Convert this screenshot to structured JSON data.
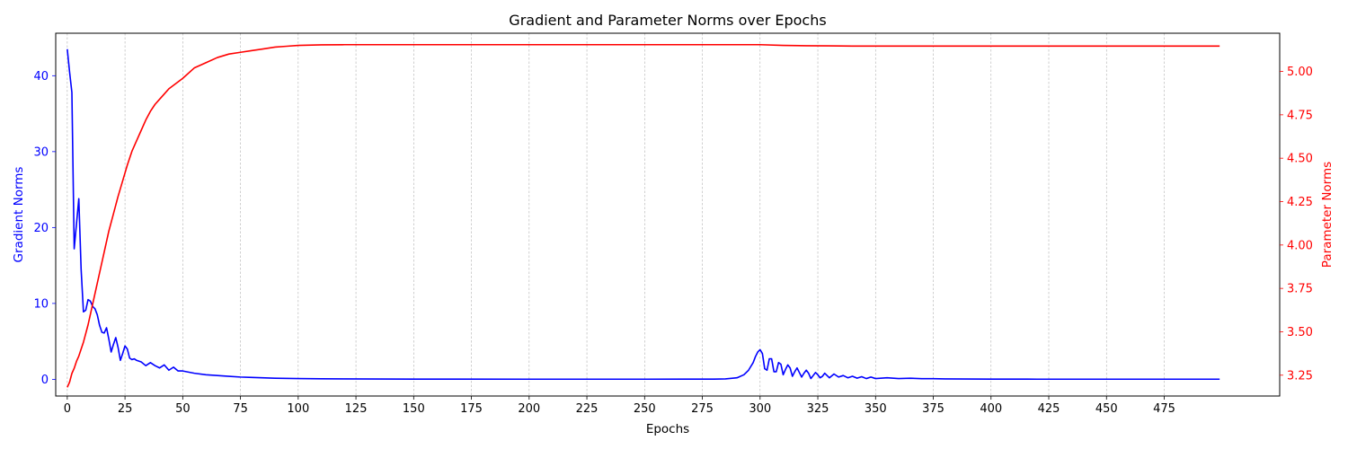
{
  "chart_data": {
    "type": "line",
    "title": "Gradient and Parameter Norms over Epochs",
    "xlabel": "Epochs",
    "ylabel_left": "Gradient Norms",
    "ylabel_right": "Parameter Norms",
    "xlim": [
      -5,
      525
    ],
    "ylim_left": [
      -2.2,
      45.6
    ],
    "ylim_right": [
      3.13,
      5.22
    ],
    "xticks": [
      0,
      25,
      50,
      75,
      100,
      125,
      150,
      175,
      200,
      225,
      250,
      275,
      300,
      325,
      350,
      375,
      400,
      425,
      450,
      475
    ],
    "yticks_left": [
      0,
      10,
      20,
      30,
      40
    ],
    "yticks_right": [
      3.25,
      3.5,
      3.75,
      4.0,
      4.25,
      4.5,
      4.75,
      5.0
    ],
    "grid": "vertical dashed",
    "series": [
      {
        "name": "Gradient Norms",
        "axis": "left",
        "color": "#0000ff",
        "x": [
          0,
          1,
          2,
          3,
          4,
          5,
          6,
          7,
          8,
          9,
          10,
          11,
          12,
          13,
          14,
          15,
          16,
          17,
          18,
          19,
          20,
          21,
          22,
          23,
          24,
          25,
          26,
          27,
          28,
          29,
          30,
          32,
          34,
          36,
          38,
          40,
          42,
          44,
          46,
          48,
          50,
          55,
          60,
          65,
          70,
          75,
          80,
          90,
          100,
          110,
          120,
          150,
          200,
          250,
          280,
          285,
          290,
          293,
          295,
          297,
          298,
          299,
          300,
          301,
          302,
          303,
          304,
          305,
          306,
          307,
          308,
          309,
          310,
          311,
          312,
          313,
          314,
          315,
          316,
          317,
          318,
          319,
          320,
          321,
          322,
          323,
          324,
          325,
          326,
          327,
          328,
          329,
          330,
          332,
          334,
          336,
          338,
          340,
          342,
          344,
          346,
          348,
          350,
          355,
          360,
          365,
          370,
          375,
          380,
          390,
          400,
          420,
          450,
          480,
          499
        ],
        "y": [
          43.5,
          40.5,
          37.8,
          17.2,
          20.5,
          23.8,
          14.5,
          8.9,
          9.1,
          10.5,
          10.3,
          9.6,
          9.3,
          8.5,
          7.1,
          6.2,
          6.1,
          6.8,
          5.3,
          3.6,
          4.6,
          5.5,
          4.2,
          2.5,
          3.4,
          4.4,
          4.0,
          2.8,
          2.6,
          2.7,
          2.5,
          2.3,
          1.8,
          2.2,
          1.8,
          1.5,
          1.9,
          1.2,
          1.6,
          1.1,
          1.1,
          0.8,
          0.6,
          0.5,
          0.4,
          0.3,
          0.25,
          0.15,
          0.1,
          0.07,
          0.05,
          0.03,
          0.02,
          0.02,
          0.03,
          0.05,
          0.2,
          0.6,
          1.2,
          2.2,
          3.0,
          3.6,
          3.9,
          3.4,
          1.4,
          1.2,
          2.7,
          2.7,
          1.0,
          1.0,
          2.2,
          2.0,
          0.6,
          1.3,
          1.9,
          1.5,
          0.4,
          1.0,
          1.5,
          0.9,
          0.3,
          0.8,
          1.2,
          0.8,
          0.1,
          0.5,
          0.9,
          0.6,
          0.2,
          0.4,
          0.8,
          0.5,
          0.2,
          0.7,
          0.3,
          0.5,
          0.2,
          0.4,
          0.15,
          0.35,
          0.1,
          0.3,
          0.1,
          0.2,
          0.1,
          0.15,
          0.08,
          0.08,
          0.05,
          0.04,
          0.03,
          0.02,
          0.02,
          0.02,
          0.02
        ]
      },
      {
        "name": "Parameter Norms",
        "axis": "right",
        "color": "#ff0000",
        "x": [
          0,
          1,
          2,
          3,
          4,
          5,
          6,
          7,
          8,
          9,
          10,
          12,
          14,
          16,
          18,
          20,
          22,
          24,
          26,
          28,
          30,
          32,
          34,
          36,
          38,
          40,
          42,
          44,
          46,
          48,
          50,
          55,
          60,
          65,
          70,
          75,
          80,
          85,
          90,
          95,
          100,
          110,
          120,
          150,
          200,
          250,
          290,
          300,
          310,
          320,
          330,
          340,
          350,
          400,
          450,
          499
        ],
        "y": [
          3.18,
          3.21,
          3.26,
          3.29,
          3.33,
          3.36,
          3.4,
          3.44,
          3.49,
          3.54,
          3.6,
          3.72,
          3.84,
          3.96,
          4.08,
          4.18,
          4.28,
          4.37,
          4.46,
          4.54,
          4.6,
          4.66,
          4.72,
          4.77,
          4.81,
          4.84,
          4.87,
          4.9,
          4.92,
          4.94,
          4.96,
          5.02,
          5.05,
          5.08,
          5.1,
          5.11,
          5.12,
          5.13,
          5.14,
          5.145,
          5.15,
          5.153,
          5.154,
          5.154,
          5.154,
          5.154,
          5.154,
          5.154,
          5.15,
          5.148,
          5.147,
          5.146,
          5.146,
          5.146,
          5.146,
          5.146
        ]
      }
    ]
  }
}
